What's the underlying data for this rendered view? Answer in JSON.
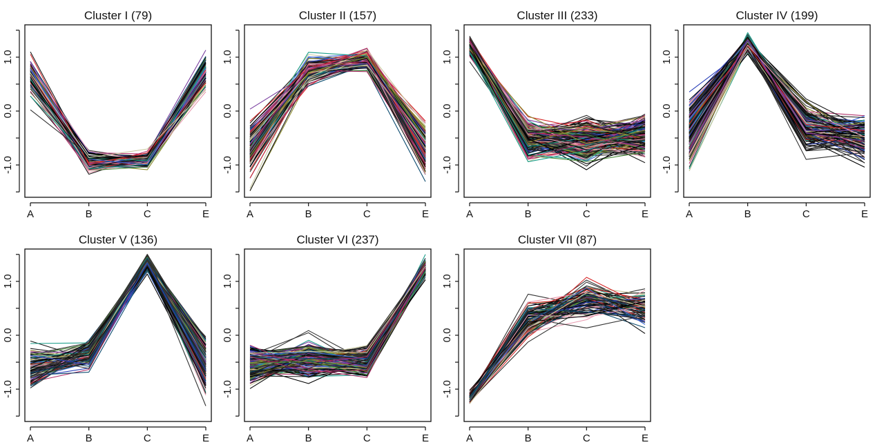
{
  "palette": [
    "#000000",
    "#1a1a1a",
    "#333333",
    "#d62728",
    "#2a3fb8",
    "#1c9e8a",
    "#8a8a2e",
    "#e89bb0",
    "#4a8c3a",
    "#7a3fa0",
    "#3d6bd8",
    "#c9c9a0",
    "#0b4a6e",
    "#b0306a"
  ],
  "chart_data": [
    {
      "type": "line",
      "title": "Cluster I (79)",
      "categories": [
        "A",
        "B",
        "C",
        "E"
      ],
      "ylim": [
        -1.6,
        1.6
      ],
      "yticks": [
        "1.0",
        "0.0",
        "-1.0"
      ],
      "ytick_values": [
        1.0,
        0.0,
        -1.0
      ],
      "series_count": 79,
      "profile": {
        "center": [
          0.65,
          -0.95,
          -0.9,
          0.75
        ],
        "spread": [
          0.3,
          0.18,
          0.12,
          0.3
        ]
      }
    },
    {
      "type": "line",
      "title": "Cluster II (157)",
      "categories": [
        "A",
        "B",
        "C",
        "E"
      ],
      "ylim": [
        -1.6,
        1.6
      ],
      "yticks": [
        "1.0",
        "0.0",
        "-1.0"
      ],
      "ytick_values": [
        1.0,
        0.0,
        -1.0
      ],
      "series_count": 157,
      "profile": {
        "center": [
          -0.75,
          0.75,
          0.95,
          -0.7
        ],
        "spread": [
          0.4,
          0.18,
          0.15,
          0.35
        ]
      }
    },
    {
      "type": "line",
      "title": "Cluster III (233)",
      "categories": [
        "A",
        "B",
        "C",
        "E"
      ],
      "ylim": [
        -1.6,
        1.6
      ],
      "yticks": [
        "1.0",
        "0.0",
        "-1.0"
      ],
      "ytick_values": [
        1.0,
        0.0,
        -1.0
      ],
      "series_count": 233,
      "profile": {
        "center": [
          1.2,
          -0.5,
          -0.55,
          -0.45
        ],
        "spread": [
          0.15,
          0.25,
          0.3,
          0.3
        ]
      }
    },
    {
      "type": "line",
      "title": "Cluster IV (199)",
      "categories": [
        "A",
        "B",
        "C",
        "E"
      ],
      "ylim": [
        -1.6,
        1.6
      ],
      "yticks": [
        "1.0",
        "0.0",
        "-1.0"
      ],
      "ytick_values": [
        1.0,
        0.0,
        -1.0
      ],
      "series_count": 199,
      "profile": {
        "center": [
          -0.4,
          1.25,
          -0.3,
          -0.5
        ],
        "spread": [
          0.45,
          0.12,
          0.3,
          0.3
        ]
      }
    },
    {
      "type": "line",
      "title": "Cluster V (136)",
      "categories": [
        "A",
        "B",
        "C",
        "E"
      ],
      "ylim": [
        -1.6,
        1.6
      ],
      "yticks": [
        "1.0",
        "0.0",
        "-1.0"
      ],
      "ytick_values": [
        1.0,
        0.0,
        -1.0
      ],
      "series_count": 136,
      "profile": {
        "center": [
          -0.6,
          -0.35,
          1.35,
          -0.5
        ],
        "spread": [
          0.3,
          0.2,
          0.15,
          0.4
        ]
      }
    },
    {
      "type": "line",
      "title": "Cluster VI (237)",
      "categories": [
        "A",
        "B",
        "C",
        "E"
      ],
      "ylim": [
        -1.6,
        1.6
      ],
      "yticks": [
        "1.0",
        "0.0",
        "-1.0"
      ],
      "ytick_values": [
        1.0,
        0.0,
        -1.0
      ],
      "series_count": 237,
      "profile": {
        "center": [
          -0.55,
          -0.45,
          -0.5,
          1.25
        ],
        "spread": [
          0.25,
          0.25,
          0.2,
          0.12
        ]
      }
    },
    {
      "type": "line",
      "title": "Cluster VII (87)",
      "categories": [
        "A",
        "B",
        "C",
        "E"
      ],
      "ylim": [
        -1.6,
        1.6
      ],
      "yticks": [
        "1.0",
        "0.0",
        "-1.0"
      ],
      "ytick_values": [
        1.0,
        0.0,
        -1.0
      ],
      "series_count": 87,
      "profile": {
        "center": [
          -1.15,
          0.3,
          0.65,
          0.5
        ],
        "spread": [
          0.1,
          0.3,
          0.3,
          0.25
        ]
      }
    }
  ]
}
